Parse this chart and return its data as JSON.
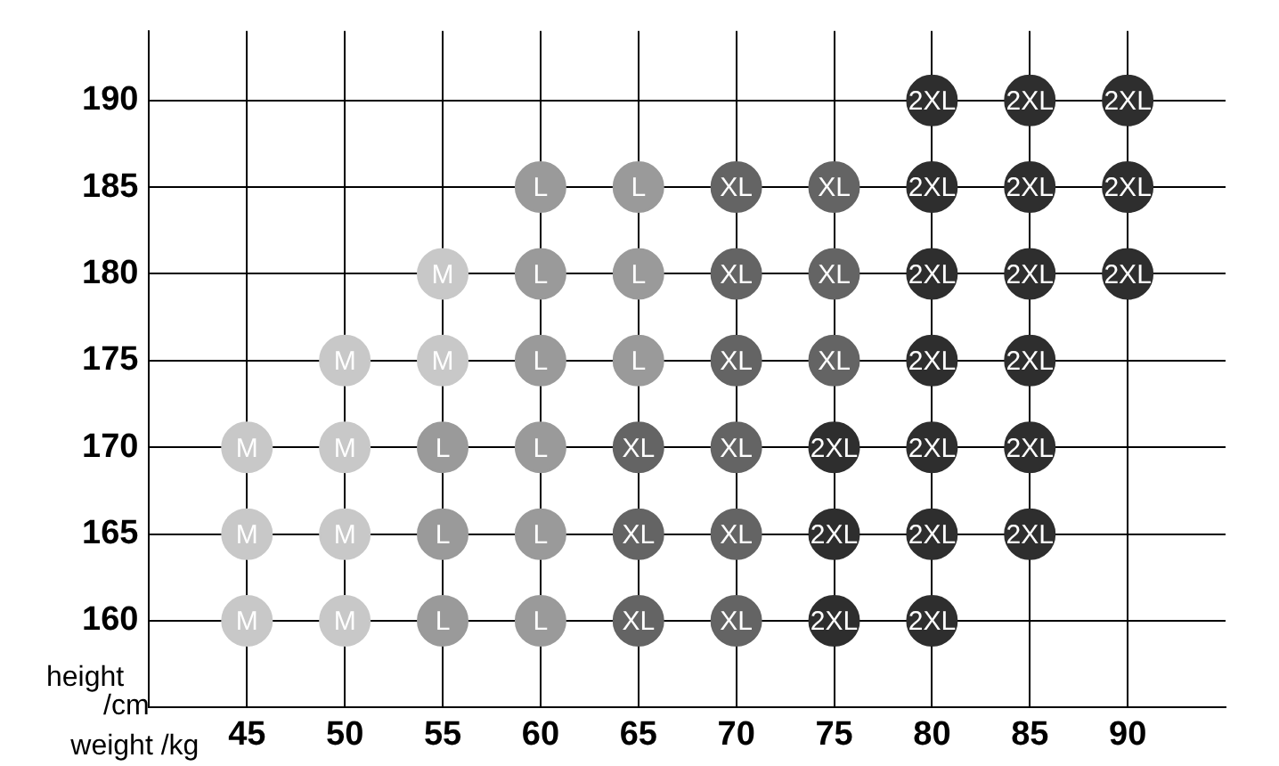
{
  "chart_data": {
    "type": "scatter",
    "xlabel": "weight /kg",
    "ylabel": "height /cm",
    "xlim": [
      40,
      95
    ],
    "xticks": [
      45,
      50,
      55,
      60,
      65,
      70,
      75,
      80,
      85,
      90
    ],
    "ylim": [
      155,
      194
    ],
    "yticks": [
      160,
      165,
      170,
      175,
      180,
      185,
      190
    ],
    "grid": true,
    "legend": false,
    "marker": "circle",
    "series": [
      {
        "name": "M",
        "color": "#c8c8c8",
        "x": [
          55,
          50,
          55,
          45,
          50,
          45,
          50,
          45,
          50
        ],
        "values": [
          180,
          175,
          175,
          170,
          170,
          165,
          165,
          160,
          160
        ]
      },
      {
        "name": "L",
        "color": "#9a9a9a",
        "x": [
          60,
          65,
          60,
          65,
          60,
          65,
          55,
          60,
          55,
          60,
          55,
          60
        ],
        "values": [
          185,
          185,
          180,
          180,
          175,
          175,
          170,
          170,
          165,
          165,
          160,
          160
        ]
      },
      {
        "name": "XL",
        "color": "#646464",
        "x": [
          70,
          75,
          70,
          75,
          70,
          75,
          65,
          70,
          65,
          70,
          65,
          70
        ],
        "values": [
          185,
          185,
          180,
          180,
          175,
          175,
          170,
          170,
          165,
          165,
          160,
          160
        ]
      },
      {
        "name": "2XL",
        "color": "#2e2e2e",
        "x": [
          80,
          85,
          90,
          80,
          85,
          90,
          80,
          85,
          90,
          80,
          85,
          75,
          80,
          85,
          75,
          80,
          85,
          75,
          80
        ],
        "values": [
          190,
          190,
          190,
          185,
          185,
          185,
          180,
          180,
          180,
          175,
          175,
          170,
          170,
          170,
          165,
          165,
          165,
          160,
          160
        ]
      }
    ]
  }
}
